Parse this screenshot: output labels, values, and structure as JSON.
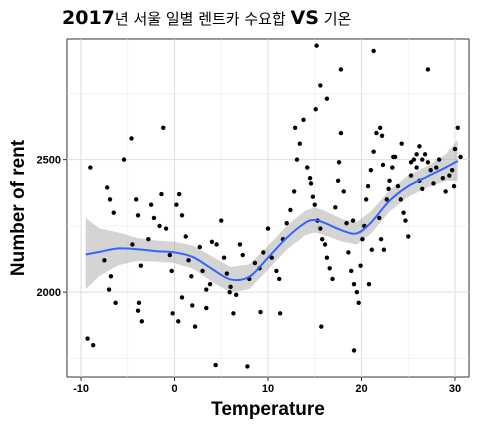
{
  "chart_data": {
    "type": "scatter",
    "title_parts": [
      {
        "text": "2017",
        "style": "bold"
      },
      {
        "text": "년 서울 일별 렌트카 수요합 ",
        "style": "normal"
      },
      {
        "text": "VS",
        "style": "bold"
      },
      {
        "text": " 기온",
        "style": "normal"
      }
    ],
    "xlabel": "Temperature",
    "ylabel": "Number of rent",
    "xlim": [
      -11.5,
      31.5
    ],
    "ylim": [
      1680,
      2955
    ],
    "x_ticks": [
      -10,
      0,
      10,
      20,
      30
    ],
    "y_ticks": [
      2000,
      2500
    ],
    "x_tick_labels": [
      "-10",
      "0",
      "10",
      "20",
      "30"
    ],
    "y_tick_labels": [
      "2000",
      "2500"
    ],
    "grid": true,
    "point_color": "#000000",
    "smooth_color": "#3366ff",
    "ribbon_color": "#999999",
    "points": [
      [
        -9.3,
        1825
      ],
      [
        -8.7,
        1800
      ],
      [
        -9.0,
        2470
      ],
      [
        -7.2,
        2395
      ],
      [
        -6.9,
        2350
      ],
      [
        -6.5,
        2300
      ],
      [
        -7.5,
        2120
      ],
      [
        -6.8,
        2060
      ],
      [
        -7.0,
        2010
      ],
      [
        -6.3,
        1960
      ],
      [
        -5.4,
        2500
      ],
      [
        -4.6,
        2580
      ],
      [
        -4.1,
        2350
      ],
      [
        -3.9,
        2290
      ],
      [
        -4.5,
        2180
      ],
      [
        -3.6,
        2100
      ],
      [
        -3.8,
        1960
      ],
      [
        -3.9,
        1930
      ],
      [
        -3.5,
        1890
      ],
      [
        -2.8,
        2200
      ],
      [
        -2.5,
        2330
      ],
      [
        -2.2,
        2280
      ],
      [
        -1.6,
        2250
      ],
      [
        -1.2,
        2620
      ],
      [
        -1.4,
        2370
      ],
      [
        -0.9,
        2240
      ],
      [
        -0.5,
        2140
      ],
      [
        -0.3,
        2080
      ],
      [
        0.2,
        2330
      ],
      [
        0.5,
        2370
      ],
      [
        0.8,
        2290
      ],
      [
        1.2,
        2210
      ],
      [
        1.5,
        2120
      ],
      [
        1.8,
        2060
      ],
      [
        -0.2,
        1920
      ],
      [
        0.4,
        1890
      ],
      [
        0.8,
        1980
      ],
      [
        1.9,
        1950
      ],
      [
        2.2,
        1870
      ],
      [
        2.7,
        2170
      ],
      [
        3.0,
        2080
      ],
      [
        3.4,
        2010
      ],
      [
        3.8,
        2030
      ],
      [
        4.0,
        2190
      ],
      [
        4.5,
        2180
      ],
      [
        4.4,
        1725
      ],
      [
        5.0,
        2270
      ],
      [
        5.3,
        2130
      ],
      [
        5.6,
        2070
      ],
      [
        6.0,
        2020
      ],
      [
        6.3,
        1920
      ],
      [
        6.6,
        1990
      ],
      [
        7.0,
        2180
      ],
      [
        7.3,
        2140
      ],
      [
        7.8,
        1720
      ],
      [
        8.0,
        2050
      ],
      [
        8.6,
        2110
      ],
      [
        9.1,
        2090
      ],
      [
        9.5,
        2150
      ],
      [
        10.0,
        2240
      ],
      [
        10.4,
        2130
      ],
      [
        10.9,
        2080
      ],
      [
        11.2,
        2050
      ],
      [
        11.6,
        2200
      ],
      [
        12.0,
        2260
      ],
      [
        12.4,
        2310
      ],
      [
        12.8,
        2380
      ],
      [
        13.1,
        2500
      ],
      [
        13.4,
        2560
      ],
      [
        13.8,
        2650
      ],
      [
        14.2,
        2470
      ],
      [
        14.5,
        2430
      ],
      [
        14.8,
        2360
      ],
      [
        15.0,
        2330
      ],
      [
        15.3,
        2270
      ],
      [
        15.6,
        2240
      ],
      [
        15.8,
        2200
      ],
      [
        16.1,
        2180
      ],
      [
        16.3,
        2130
      ],
      [
        16.6,
        2090
      ],
      [
        16.9,
        2050
      ],
      [
        17.2,
        2320
      ],
      [
        17.5,
        2420
      ],
      [
        17.8,
        2600
      ],
      [
        18.1,
        2380
      ],
      [
        18.4,
        2260
      ],
      [
        18.6,
        2150
      ],
      [
        18.9,
        2080
      ],
      [
        19.2,
        2030
      ],
      [
        19.5,
        2000
      ],
      [
        19.7,
        1960
      ],
      [
        19.9,
        2100
      ],
      [
        20.1,
        2200
      ],
      [
        20.3,
        2250
      ],
      [
        20.5,
        2350
      ],
      [
        20.7,
        2400
      ],
      [
        21.0,
        2460
      ],
      [
        21.3,
        2530
      ],
      [
        21.6,
        2600
      ],
      [
        21.9,
        2280
      ],
      [
        22.1,
        2200
      ],
      [
        22.4,
        2160
      ],
      [
        22.7,
        2350
      ],
      [
        23.0,
        2420
      ],
      [
        23.3,
        2470
      ],
      [
        23.6,
        2510
      ],
      [
        23.9,
        2400
      ],
      [
        24.2,
        2350
      ],
      [
        24.5,
        2300
      ],
      [
        24.7,
        2270
      ],
      [
        25.0,
        2210
      ],
      [
        25.3,
        2440
      ],
      [
        25.6,
        2500
      ],
      [
        25.9,
        2470
      ],
      [
        26.2,
        2420
      ],
      [
        26.5,
        2390
      ],
      [
        26.8,
        2520
      ],
      [
        27.1,
        2490
      ],
      [
        27.4,
        2460
      ],
      [
        27.7,
        2410
      ],
      [
        28.0,
        2470
      ],
      [
        28.3,
        2500
      ],
      [
        28.7,
        2430
      ],
      [
        29.0,
        2380
      ],
      [
        29.4,
        2440
      ],
      [
        29.7,
        2460
      ],
      [
        30.0,
        2540
      ],
      [
        30.3,
        2620
      ],
      [
        30.6,
        2510
      ],
      [
        29.9,
        2400
      ],
      [
        15.2,
        2930
      ],
      [
        21.3,
        2910
      ],
      [
        17.8,
        2840
      ],
      [
        27.1,
        2840
      ],
      [
        15.6,
        2780
      ],
      [
        15.1,
        2690
      ],
      [
        16.3,
        2730
      ],
      [
        12.9,
        2620
      ],
      [
        22.0,
        2620
      ],
      [
        22.2,
        2590
      ],
      [
        14.6,
        2410
      ],
      [
        19.2,
        1780
      ],
      [
        11.3,
        1920
      ],
      [
        15.7,
        1870
      ],
      [
        9.2,
        1925
      ],
      [
        5.9,
        2000
      ],
      [
        3.4,
        1940
      ],
      [
        24.3,
        2560
      ],
      [
        25.3,
        2490
      ],
      [
        25.9,
        2520
      ],
      [
        26.5,
        2500
      ],
      [
        22.9,
        2390
      ],
      [
        23.4,
        2510
      ],
      [
        26.2,
        2550
      ],
      [
        17.6,
        2490
      ],
      [
        20.8,
        2030
      ],
      [
        19.1,
        2270
      ],
      [
        21.1,
        2160
      ],
      [
        22.3,
        2480
      ]
    ],
    "smooth": [
      {
        "x": -9.5,
        "y": 2142,
        "lo": 2012,
        "hi": 2280
      },
      {
        "x": -8.0,
        "y": 2152,
        "lo": 2062,
        "hi": 2240
      },
      {
        "x": -6.0,
        "y": 2165,
        "lo": 2102,
        "hi": 2225
      },
      {
        "x": -4.0,
        "y": 2162,
        "lo": 2118,
        "hi": 2205
      },
      {
        "x": -2.0,
        "y": 2155,
        "lo": 2115,
        "hi": 2195
      },
      {
        "x": 0.0,
        "y": 2150,
        "lo": 2110,
        "hi": 2190
      },
      {
        "x": 2.0,
        "y": 2132,
        "lo": 2088,
        "hi": 2175
      },
      {
        "x": 4.0,
        "y": 2088,
        "lo": 2040,
        "hi": 2135
      },
      {
        "x": 6.0,
        "y": 2048,
        "lo": 1998,
        "hi": 2095
      },
      {
        "x": 8.0,
        "y": 2058,
        "lo": 2012,
        "hi": 2105
      },
      {
        "x": 10.0,
        "y": 2130,
        "lo": 2085,
        "hi": 2175
      },
      {
        "x": 12.0,
        "y": 2205,
        "lo": 2160,
        "hi": 2250
      },
      {
        "x": 14.0,
        "y": 2262,
        "lo": 2215,
        "hi": 2308
      },
      {
        "x": 15.0,
        "y": 2272,
        "lo": 2225,
        "hi": 2320
      },
      {
        "x": 16.0,
        "y": 2262,
        "lo": 2215,
        "hi": 2308
      },
      {
        "x": 18.0,
        "y": 2232,
        "lo": 2190,
        "hi": 2275
      },
      {
        "x": 19.5,
        "y": 2222,
        "lo": 2180,
        "hi": 2265
      },
      {
        "x": 21.0,
        "y": 2262,
        "lo": 2220,
        "hi": 2305
      },
      {
        "x": 23.0,
        "y": 2345,
        "lo": 2305,
        "hi": 2385
      },
      {
        "x": 25.0,
        "y": 2400,
        "lo": 2360,
        "hi": 2440
      },
      {
        "x": 27.0,
        "y": 2435,
        "lo": 2395,
        "hi": 2475
      },
      {
        "x": 29.0,
        "y": 2470,
        "lo": 2420,
        "hi": 2520
      },
      {
        "x": 30.3,
        "y": 2495,
        "lo": 2420,
        "hi": 2575
      }
    ]
  }
}
